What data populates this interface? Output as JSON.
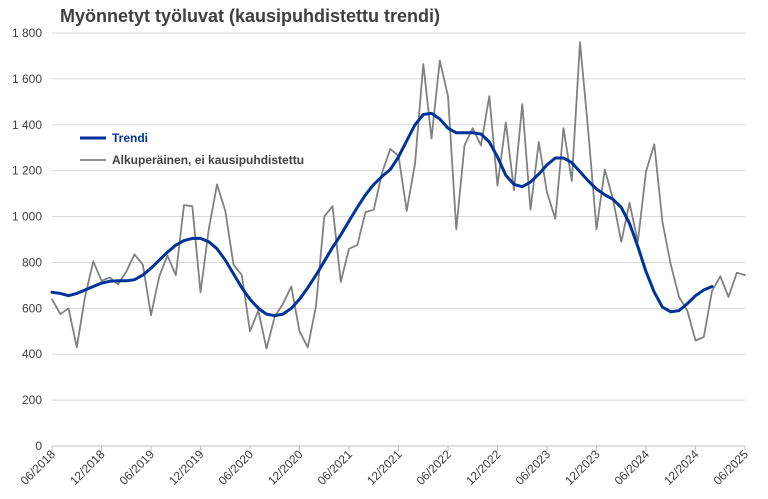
{
  "chart_data": {
    "type": "line",
    "title": "Myönnetyt työluvat (kausipuhdistettu trendi)",
    "xlabel": "",
    "ylabel": "",
    "ylim": [
      0,
      1800
    ],
    "yticks": [
      "0",
      "200",
      "400",
      "600",
      "800",
      "1 000",
      "1 200",
      "1 400",
      "1 600",
      "1 800"
    ],
    "xticks": [
      "06/2018",
      "12/2018",
      "06/2019",
      "12/2019",
      "06/2020",
      "12/2020",
      "06/2021",
      "12/2021",
      "06/2022",
      "12/2022",
      "06/2023",
      "12/2023",
      "06/2024",
      "12/2024",
      "06/2025"
    ],
    "grid": true,
    "legend": "upper-left",
    "colors": {
      "trend": "#003399",
      "original": "#7f8280"
    },
    "series": [
      {
        "name": "Trendi",
        "start": "06/2018",
        "values": [
          670,
          665,
          655,
          665,
          680,
          695,
          710,
          718,
          720,
          720,
          725,
          745,
          775,
          810,
          845,
          875,
          895,
          905,
          905,
          890,
          860,
          810,
          750,
          690,
          640,
          600,
          575,
          568,
          575,
          600,
          640,
          690,
          745,
          805,
          865,
          920,
          980,
          1040,
          1095,
          1140,
          1175,
          1205,
          1260,
          1330,
          1400,
          1445,
          1450,
          1425,
          1385,
          1365,
          1365,
          1365,
          1360,
          1325,
          1260,
          1180,
          1140,
          1130,
          1150,
          1185,
          1225,
          1255,
          1255,
          1235,
          1195,
          1155,
          1120,
          1095,
          1075,
          1040,
          970,
          870,
          760,
          670,
          605,
          585,
          590,
          620,
          655,
          680,
          695
        ]
      },
      {
        "name": "Alkuperäinen, ei kausipuhdistettu",
        "start": "06/2018",
        "values": [
          640,
          575,
          600,
          430,
          650,
          805,
          720,
          735,
          705,
          760,
          835,
          790,
          570,
          740,
          830,
          745,
          1050,
          1045,
          670,
          945,
          1140,
          1025,
          790,
          745,
          500,
          590,
          425,
          565,
          620,
          695,
          500,
          430,
          610,
          1000,
          1045,
          715,
          860,
          875,
          1020,
          1030,
          1190,
          1295,
          1265,
          1025,
          1230,
          1665,
          1340,
          1680,
          1525,
          945,
          1310,
          1385,
          1310,
          1525,
          1135,
          1410,
          1115,
          1490,
          1030,
          1325,
          1105,
          990,
          1385,
          1155,
          1760,
          1370,
          945,
          1205,
          1075,
          890,
          1060,
          890,
          1195,
          1315,
          975,
          790,
          650,
          590,
          460,
          475,
          675,
          740,
          650,
          755,
          745
        ]
      }
    ]
  }
}
